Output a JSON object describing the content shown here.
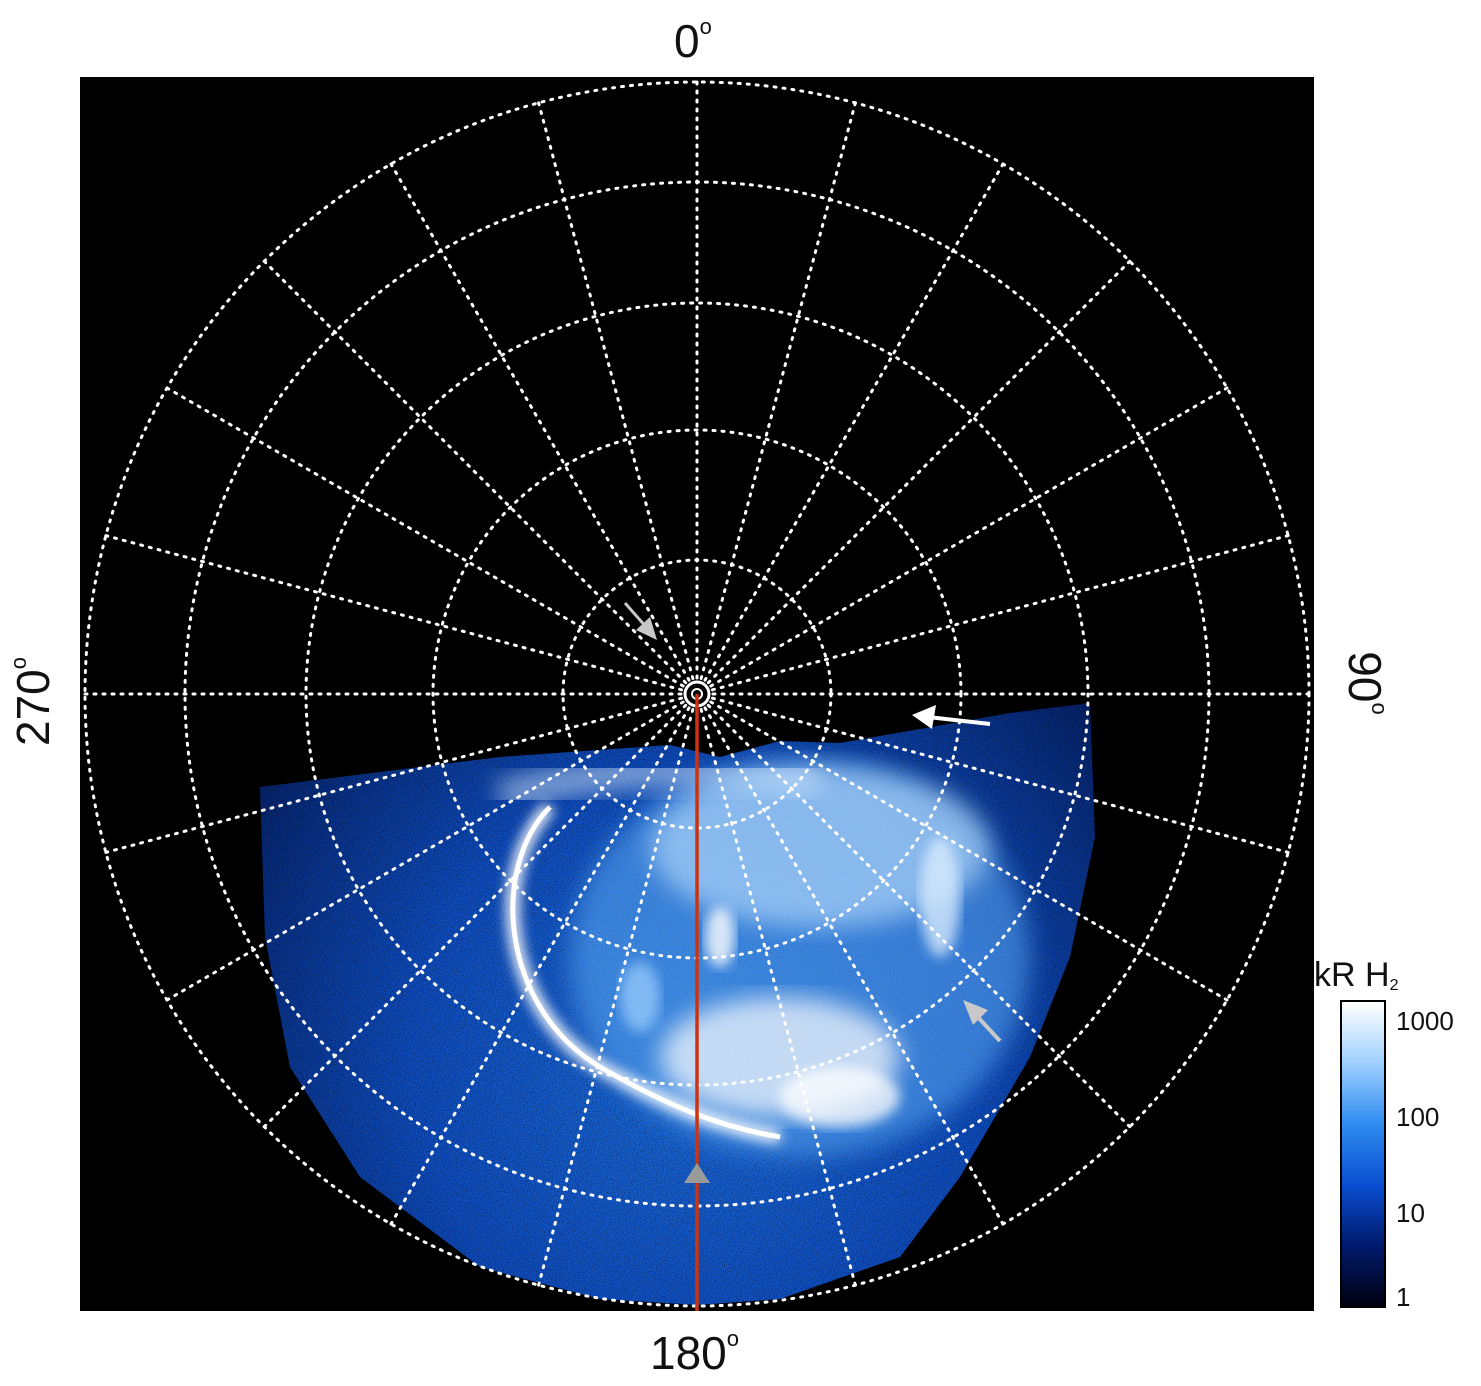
{
  "labels": {
    "top": "0",
    "bottom": "180",
    "left": "270",
    "right": "90",
    "degree_symbol": "o"
  },
  "colorbar": {
    "title_main": "kR H",
    "title_sub": "2",
    "ticks": [
      "1000",
      "100",
      "10",
      "1"
    ],
    "scale": "log",
    "range": [
      1,
      1000
    ],
    "colors": [
      "#000010",
      "#001a6e",
      "#0a4fd1",
      "#2f8cf0",
      "#9fd0ff",
      "#ffffff"
    ]
  },
  "plot": {
    "background": "#000000",
    "grid_color": "#ffffff",
    "meridian_color": "#cc3311",
    "arrow_white": "#ffffff",
    "arrow_grey": "#c8c8c8",
    "marker_grey": "#9a9a9a"
  }
}
